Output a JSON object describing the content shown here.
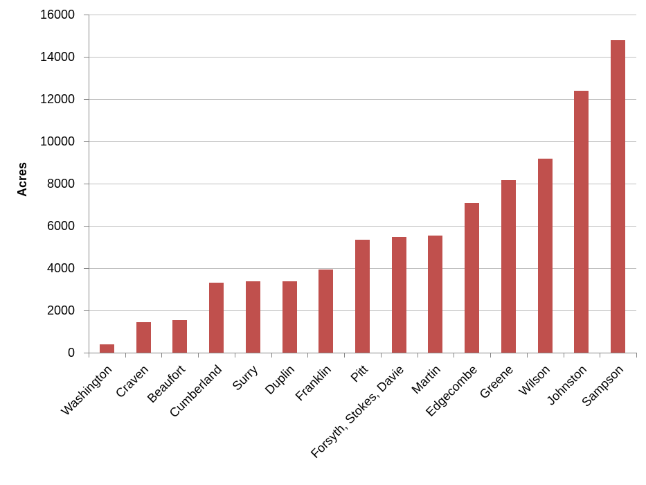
{
  "chart_data": {
    "type": "bar",
    "title": "",
    "xlabel": "",
    "ylabel": "Acres",
    "ylim": [
      0,
      16000
    ],
    "yticks": [
      0,
      2000,
      4000,
      6000,
      8000,
      10000,
      12000,
      14000,
      16000
    ],
    "grid": true,
    "legend": null,
    "bar_color": "#C0504D",
    "categories": [
      "Washington",
      "Craven",
      "Beaufort",
      "Cumberland",
      "Surry",
      "Duplin",
      "Franklin",
      "Pitt",
      "Forsyth, Stokes, Davie",
      "Martin",
      "Edgecombe",
      "Greene",
      "Wilson",
      "Johnston",
      "Sampson"
    ],
    "values": [
      390,
      1450,
      1550,
      3320,
      3390,
      3390,
      3930,
      5350,
      5470,
      5550,
      7070,
      8180,
      9170,
      12380,
      14800
    ]
  }
}
